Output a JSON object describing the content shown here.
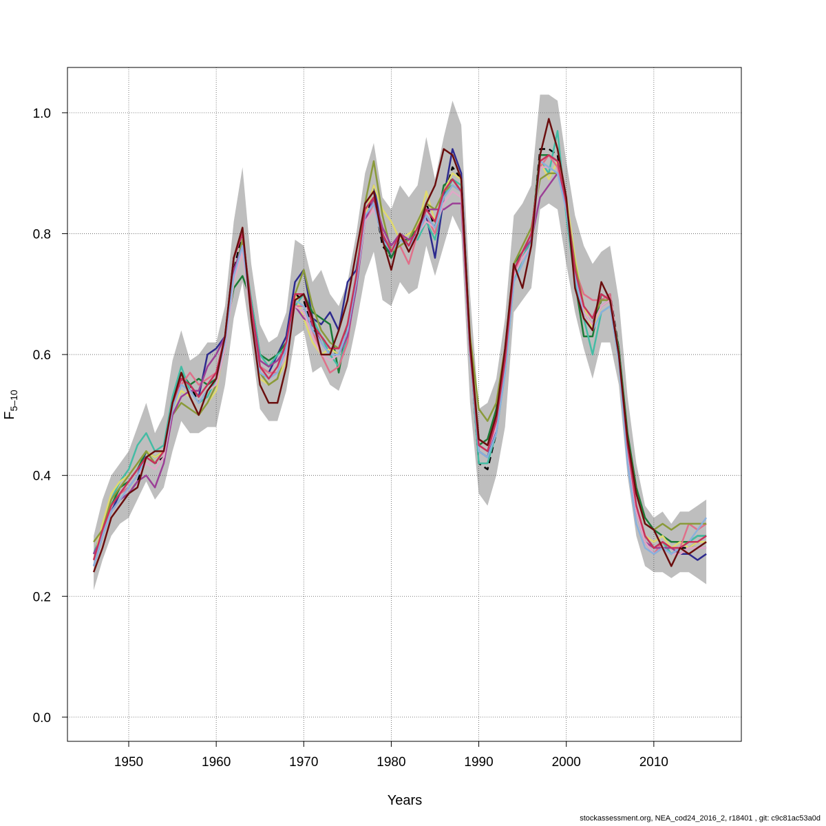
{
  "chart_data": {
    "type": "line",
    "title": "",
    "xlabel": "Years",
    "ylabel_main": "F",
    "ylabel_sub": "5–10",
    "xlim": [
      1943,
      2020
    ],
    "ylim": [
      -0.04,
      1.075
    ],
    "xticks": [
      1950,
      1960,
      1970,
      1980,
      1990,
      2000,
      2010
    ],
    "yticks": [
      0.0,
      0.2,
      0.4,
      0.6,
      0.8,
      1.0
    ],
    "ytick_labels": [
      "0.0",
      "0.2",
      "0.4",
      "0.6",
      "0.8",
      "1.0"
    ],
    "grid": true,
    "x": [
      1946,
      1947,
      1948,
      1949,
      1950,
      1951,
      1952,
      1953,
      1954,
      1955,
      1956,
      1957,
      1958,
      1959,
      1960,
      1961,
      1962,
      1963,
      1964,
      1965,
      1966,
      1967,
      1968,
      1969,
      1970,
      1971,
      1972,
      1973,
      1974,
      1975,
      1976,
      1977,
      1978,
      1979,
      1980,
      1981,
      1982,
      1983,
      1984,
      1985,
      1986,
      1987,
      1988,
      1989,
      1990,
      1991,
      1992,
      1993,
      1994,
      1995,
      1996,
      1997,
      1998,
      1999,
      2000,
      2001,
      2002,
      2003,
      2004,
      2005,
      2006,
      2007,
      2008,
      2009,
      2010,
      2011,
      2012,
      2013,
      2014,
      2015,
      2016
    ],
    "confidence_band": {
      "upper": [
        0.3,
        0.36,
        0.4,
        0.42,
        0.44,
        0.48,
        0.52,
        0.47,
        0.5,
        0.59,
        0.64,
        0.59,
        0.6,
        0.62,
        0.62,
        0.68,
        0.82,
        0.91,
        0.75,
        0.65,
        0.62,
        0.63,
        0.67,
        0.79,
        0.78,
        0.72,
        0.74,
        0.7,
        0.68,
        0.72,
        0.8,
        0.9,
        0.95,
        0.86,
        0.84,
        0.88,
        0.86,
        0.88,
        0.96,
        0.89,
        0.96,
        1.02,
        0.98,
        0.7,
        0.51,
        0.52,
        0.56,
        0.66,
        0.83,
        0.85,
        0.88,
        1.03,
        1.03,
        1.02,
        0.92,
        0.83,
        0.78,
        0.75,
        0.77,
        0.78,
        0.69,
        0.53,
        0.42,
        0.35,
        0.33,
        0.34,
        0.32,
        0.34,
        0.34,
        0.35,
        0.36
      ],
      "lower": [
        0.21,
        0.26,
        0.3,
        0.32,
        0.33,
        0.36,
        0.39,
        0.36,
        0.38,
        0.44,
        0.49,
        0.47,
        0.47,
        0.48,
        0.48,
        0.55,
        0.66,
        0.72,
        0.62,
        0.51,
        0.49,
        0.49,
        0.54,
        0.63,
        0.64,
        0.57,
        0.58,
        0.55,
        0.54,
        0.58,
        0.65,
        0.73,
        0.77,
        0.69,
        0.68,
        0.72,
        0.7,
        0.71,
        0.78,
        0.73,
        0.78,
        0.83,
        0.8,
        0.52,
        0.37,
        0.35,
        0.4,
        0.48,
        0.67,
        0.69,
        0.71,
        0.84,
        0.85,
        0.84,
        0.75,
        0.67,
        0.61,
        0.56,
        0.62,
        0.62,
        0.55,
        0.4,
        0.3,
        0.25,
        0.24,
        0.24,
        0.23,
        0.24,
        0.24,
        0.23,
        0.22
      ]
    },
    "series": [
      {
        "color": "#000000",
        "dash": true,
        "values": [
          0.26,
          0.3,
          0.34,
          0.36,
          0.37,
          0.39,
          0.43,
          0.42,
          0.43,
          0.51,
          0.56,
          0.55,
          0.52,
          0.54,
          0.56,
          0.62,
          0.74,
          0.8,
          0.67,
          0.57,
          0.55,
          0.56,
          0.61,
          0.7,
          0.69,
          0.64,
          0.63,
          0.61,
          0.6,
          0.64,
          0.72,
          0.83,
          0.86,
          0.78,
          0.76,
          0.8,
          0.78,
          0.8,
          0.85,
          0.81,
          0.86,
          0.91,
          0.89,
          0.61,
          0.42,
          0.41,
          0.47,
          0.58,
          0.74,
          0.76,
          0.79,
          0.94,
          0.94,
          0.93,
          0.84,
          0.74,
          0.67,
          0.65,
          0.69,
          0.7,
          0.61,
          0.45,
          0.35,
          0.3,
          0.28,
          0.29,
          0.27,
          0.28,
          0.28,
          0.29,
          0.29
        ]
      },
      {
        "color": "#2d2a8e",
        "values": [
          0.25,
          0.3,
          0.34,
          0.37,
          0.38,
          0.4,
          0.44,
          0.43,
          0.44,
          0.52,
          0.56,
          0.55,
          0.53,
          0.6,
          0.61,
          0.63,
          0.76,
          0.8,
          0.68,
          0.58,
          0.57,
          0.6,
          0.63,
          0.72,
          0.74,
          0.66,
          0.65,
          0.67,
          0.64,
          0.72,
          0.74,
          0.83,
          0.88,
          0.8,
          0.76,
          0.79,
          0.78,
          0.8,
          0.83,
          0.76,
          0.86,
          0.94,
          0.9,
          0.62,
          0.44,
          0.43,
          0.48,
          0.58,
          0.74,
          0.76,
          0.79,
          0.93,
          0.93,
          0.92,
          0.85,
          0.74,
          0.67,
          0.65,
          0.68,
          0.69,
          0.6,
          0.44,
          0.34,
          0.29,
          0.27,
          0.28,
          0.27,
          0.27,
          0.27,
          0.26,
          0.27
        ]
      },
      {
        "color": "#1b7a36",
        "values": [
          0.27,
          0.31,
          0.35,
          0.38,
          0.39,
          0.41,
          0.44,
          0.43,
          0.44,
          0.52,
          0.57,
          0.55,
          0.56,
          0.55,
          0.56,
          0.63,
          0.71,
          0.73,
          0.69,
          0.6,
          0.59,
          0.6,
          0.62,
          0.69,
          0.7,
          0.67,
          0.66,
          0.65,
          0.57,
          0.65,
          0.72,
          0.84,
          0.86,
          0.79,
          0.76,
          0.79,
          0.79,
          0.81,
          0.83,
          0.81,
          0.88,
          0.89,
          0.87,
          0.61,
          0.45,
          0.46,
          0.51,
          0.6,
          0.75,
          0.77,
          0.8,
          0.93,
          0.93,
          0.92,
          0.84,
          0.72,
          0.63,
          0.63,
          0.7,
          0.69,
          0.61,
          0.47,
          0.38,
          0.33,
          0.31,
          0.3,
          0.29,
          0.29,
          0.29,
          0.3,
          0.3
        ]
      },
      {
        "color": "#44bca4",
        "values": [
          0.27,
          0.31,
          0.36,
          0.39,
          0.41,
          0.45,
          0.47,
          0.44,
          0.45,
          0.53,
          0.58,
          0.54,
          0.52,
          0.53,
          0.56,
          0.61,
          0.73,
          0.79,
          0.69,
          0.6,
          0.58,
          0.6,
          0.61,
          0.68,
          0.7,
          0.66,
          0.63,
          0.6,
          0.58,
          0.63,
          0.71,
          0.83,
          0.85,
          0.8,
          0.77,
          0.78,
          0.79,
          0.79,
          0.82,
          0.79,
          0.86,
          0.89,
          0.88,
          0.61,
          0.42,
          0.42,
          0.47,
          0.57,
          0.72,
          0.76,
          0.79,
          0.92,
          0.9,
          0.97,
          0.83,
          0.72,
          0.66,
          0.6,
          0.67,
          0.68,
          0.6,
          0.44,
          0.35,
          0.3,
          0.28,
          0.29,
          0.27,
          0.28,
          0.29,
          0.3,
          0.3
        ]
      },
      {
        "color": "#e0da6e",
        "values": [
          0.26,
          0.32,
          0.37,
          0.39,
          0.4,
          0.42,
          0.44,
          0.43,
          0.44,
          0.51,
          0.54,
          0.53,
          0.5,
          0.52,
          0.54,
          0.62,
          0.72,
          0.77,
          0.66,
          0.56,
          0.55,
          0.56,
          0.59,
          0.7,
          0.66,
          0.62,
          0.6,
          0.61,
          0.6,
          0.63,
          0.71,
          0.83,
          0.88,
          0.84,
          0.82,
          0.79,
          0.8,
          0.81,
          0.87,
          0.82,
          0.87,
          0.9,
          0.89,
          0.62,
          0.46,
          0.45,
          0.49,
          0.59,
          0.74,
          0.77,
          0.8,
          0.92,
          0.89,
          0.92,
          0.86,
          0.76,
          0.68,
          0.64,
          0.68,
          0.69,
          0.6,
          0.44,
          0.35,
          0.3,
          0.29,
          0.3,
          0.28,
          0.29,
          0.28,
          0.29,
          0.29
        ]
      },
      {
        "color": "#e0708a",
        "values": [
          0.26,
          0.3,
          0.35,
          0.37,
          0.38,
          0.4,
          0.43,
          0.42,
          0.44,
          0.52,
          0.55,
          0.57,
          0.55,
          0.56,
          0.57,
          0.62,
          0.73,
          0.78,
          0.67,
          0.58,
          0.57,
          0.57,
          0.61,
          0.68,
          0.68,
          0.64,
          0.6,
          0.57,
          0.58,
          0.62,
          0.72,
          0.82,
          0.85,
          0.8,
          0.77,
          0.78,
          0.75,
          0.8,
          0.83,
          0.8,
          0.86,
          0.88,
          0.87,
          0.6,
          0.45,
          0.44,
          0.48,
          0.59,
          0.74,
          0.76,
          0.78,
          0.91,
          0.93,
          0.91,
          0.85,
          0.74,
          0.7,
          0.69,
          0.69,
          0.7,
          0.6,
          0.45,
          0.35,
          0.29,
          0.27,
          0.29,
          0.28,
          0.28,
          0.32,
          0.31,
          0.32
        ]
      },
      {
        "color": "#8a9a3a",
        "values": [
          0.29,
          0.31,
          0.36,
          0.38,
          0.4,
          0.42,
          0.44,
          0.42,
          0.44,
          0.5,
          0.52,
          0.51,
          0.5,
          0.52,
          0.55,
          0.61,
          0.73,
          0.79,
          0.67,
          0.57,
          0.55,
          0.56,
          0.61,
          0.7,
          0.74,
          0.68,
          0.64,
          0.62,
          0.61,
          0.65,
          0.73,
          0.85,
          0.92,
          0.83,
          0.77,
          0.78,
          0.79,
          0.82,
          0.85,
          0.84,
          0.87,
          0.88,
          0.87,
          0.63,
          0.51,
          0.49,
          0.52,
          0.61,
          0.75,
          0.78,
          0.81,
          0.89,
          0.9,
          0.9,
          0.85,
          0.75,
          0.68,
          0.66,
          0.69,
          0.69,
          0.6,
          0.46,
          0.37,
          0.32,
          0.31,
          0.32,
          0.31,
          0.32,
          0.32,
          0.32,
          0.32
        ]
      },
      {
        "color": "#9b3f96",
        "values": [
          0.27,
          0.3,
          0.34,
          0.36,
          0.37,
          0.39,
          0.4,
          0.38,
          0.42,
          0.5,
          0.53,
          0.54,
          0.54,
          0.58,
          0.6,
          0.63,
          0.74,
          0.78,
          0.68,
          0.59,
          0.58,
          0.59,
          0.61,
          0.68,
          0.66,
          0.65,
          0.62,
          0.6,
          0.6,
          0.63,
          0.71,
          0.82,
          0.86,
          0.81,
          0.78,
          0.8,
          0.79,
          0.8,
          0.84,
          0.84,
          0.84,
          0.85,
          0.85,
          0.6,
          0.46,
          0.45,
          0.49,
          0.59,
          0.74,
          0.77,
          0.79,
          0.86,
          0.88,
          0.9,
          0.85,
          0.74,
          0.67,
          0.65,
          0.68,
          0.69,
          0.6,
          0.45,
          0.35,
          0.29,
          0.28,
          0.28,
          0.28,
          0.27,
          0.28,
          0.28,
          0.28
        ]
      },
      {
        "color": "#e0a8c8",
        "values": [
          0.26,
          0.3,
          0.34,
          0.36,
          0.38,
          0.4,
          0.42,
          0.41,
          0.43,
          0.51,
          0.55,
          0.54,
          0.52,
          0.54,
          0.55,
          0.61,
          0.72,
          0.77,
          0.66,
          0.57,
          0.56,
          0.57,
          0.6,
          0.68,
          0.67,
          0.63,
          0.6,
          0.59,
          0.6,
          0.64,
          0.72,
          0.82,
          0.84,
          0.8,
          0.77,
          0.79,
          0.78,
          0.8,
          0.82,
          0.81,
          0.85,
          0.87,
          0.86,
          0.6,
          0.45,
          0.44,
          0.48,
          0.58,
          0.73,
          0.76,
          0.78,
          0.91,
          0.91,
          0.9,
          0.84,
          0.73,
          0.67,
          0.65,
          0.68,
          0.69,
          0.6,
          0.44,
          0.34,
          0.29,
          0.27,
          0.28,
          0.27,
          0.27,
          0.28,
          0.28,
          0.28
        ]
      },
      {
        "color": "#8ab0dc",
        "values": [
          0.25,
          0.3,
          0.34,
          0.36,
          0.38,
          0.4,
          0.43,
          0.42,
          0.44,
          0.51,
          0.55,
          0.54,
          0.52,
          0.54,
          0.56,
          0.62,
          0.73,
          0.78,
          0.67,
          0.57,
          0.56,
          0.57,
          0.61,
          0.69,
          0.68,
          0.64,
          0.62,
          0.6,
          0.6,
          0.64,
          0.72,
          0.83,
          0.85,
          0.79,
          0.77,
          0.79,
          0.78,
          0.8,
          0.83,
          0.81,
          0.86,
          0.88,
          0.87,
          0.6,
          0.44,
          0.43,
          0.47,
          0.57,
          0.72,
          0.75,
          0.78,
          0.92,
          0.91,
          0.9,
          0.84,
          0.73,
          0.66,
          0.64,
          0.67,
          0.68,
          0.59,
          0.42,
          0.32,
          0.28,
          0.27,
          0.28,
          0.27,
          0.28,
          0.29,
          0.31,
          0.33
        ]
      },
      {
        "color": "#c8305a",
        "values": [
          0.26,
          0.31,
          0.35,
          0.37,
          0.39,
          0.41,
          0.43,
          0.42,
          0.44,
          0.52,
          0.56,
          0.55,
          0.53,
          0.55,
          0.57,
          0.63,
          0.76,
          0.8,
          0.68,
          0.58,
          0.56,
          0.58,
          0.62,
          0.7,
          0.7,
          0.65,
          0.63,
          0.61,
          0.61,
          0.65,
          0.73,
          0.84,
          0.86,
          0.8,
          0.77,
          0.8,
          0.78,
          0.81,
          0.84,
          0.82,
          0.87,
          0.89,
          0.87,
          0.61,
          0.45,
          0.44,
          0.49,
          0.59,
          0.74,
          0.77,
          0.8,
          0.92,
          0.93,
          0.92,
          0.85,
          0.74,
          0.68,
          0.66,
          0.7,
          0.69,
          0.6,
          0.45,
          0.35,
          0.3,
          0.28,
          0.29,
          0.28,
          0.28,
          0.29,
          0.29,
          0.3
        ]
      },
      {
        "color": "#6a0e0e",
        "values": [
          0.24,
          0.28,
          0.33,
          0.35,
          0.37,
          0.38,
          0.43,
          0.44,
          0.44,
          0.52,
          0.57,
          0.53,
          0.5,
          0.54,
          0.56,
          0.63,
          0.76,
          0.81,
          0.66,
          0.55,
          0.52,
          0.52,
          0.58,
          0.69,
          0.7,
          0.66,
          0.6,
          0.6,
          0.64,
          0.69,
          0.77,
          0.85,
          0.87,
          0.79,
          0.74,
          0.8,
          0.77,
          0.8,
          0.85,
          0.88,
          0.94,
          0.93,
          0.89,
          0.62,
          0.46,
          0.45,
          0.5,
          0.61,
          0.75,
          0.71,
          0.78,
          0.93,
          0.99,
          0.94,
          0.86,
          0.71,
          0.66,
          0.64,
          0.72,
          0.69,
          0.6,
          0.46,
          0.37,
          0.32,
          0.31,
          0.28,
          0.25,
          0.28,
          0.27,
          0.28,
          0.29
        ]
      }
    ]
  },
  "footer": "stockassessment.org, NEA_cod24_2016_2, r18401 , git: c9c81ac53a0d"
}
